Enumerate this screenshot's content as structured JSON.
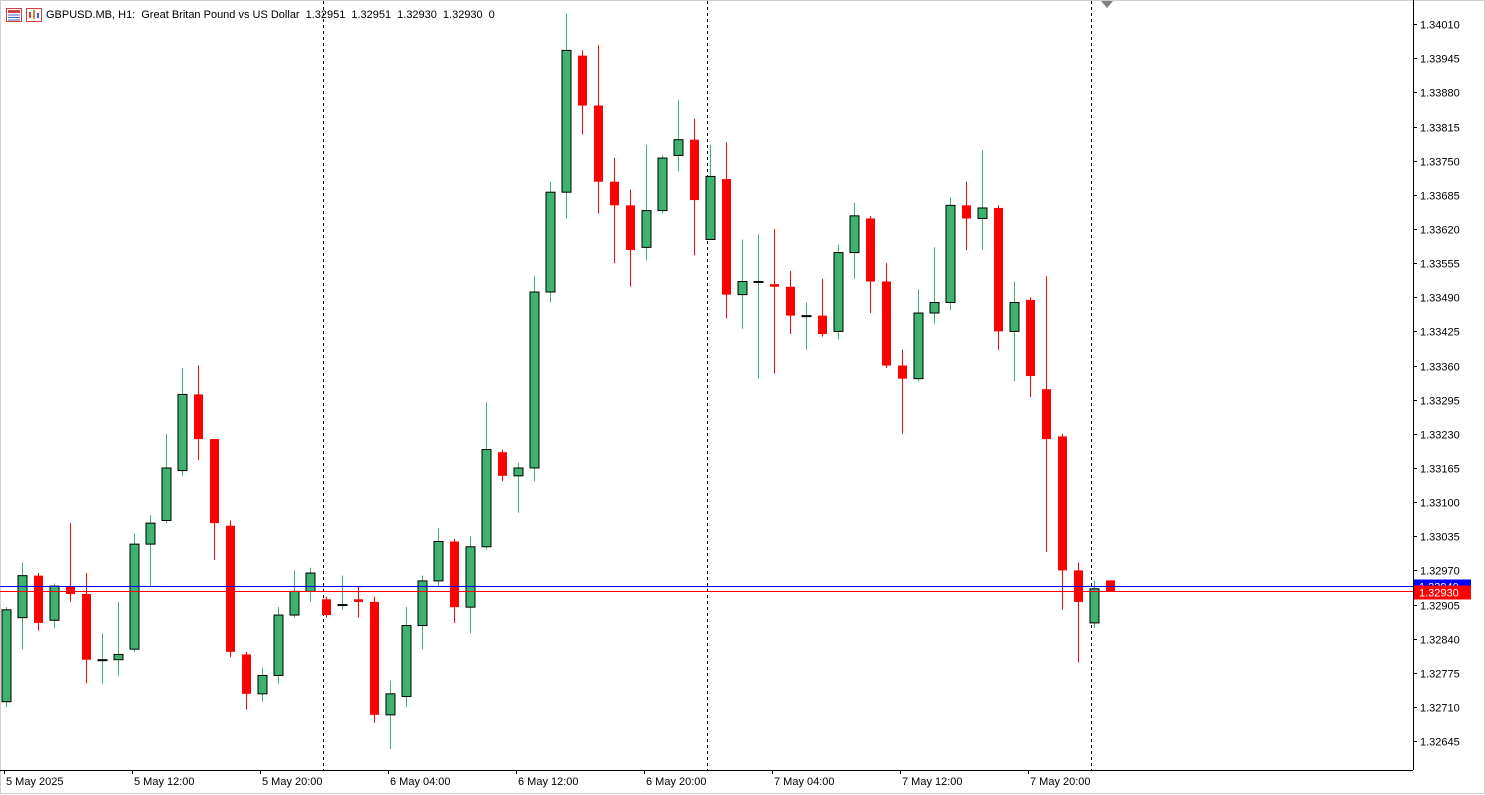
{
  "header": {
    "symbol": "GBPUSD.MB, H1:",
    "description": "Great Britan Pound vs US Dollar",
    "open": "1.32951",
    "high": "1.32951",
    "low": "1.32930",
    "close": "1.32930",
    "volume": "0",
    "icons": [
      "order-book-icon",
      "chart-window-icon"
    ]
  },
  "colors": {
    "bull": "#3cb371",
    "bear": "#ff0000",
    "wick_bull": "#3cb371",
    "wick_bear": "#ff0000",
    "candle_border": "#000000",
    "bid_line": "#ff0000",
    "ask_line": "#0000ff",
    "bid_label_bg": "#ff0000",
    "ask_label_bg": "#0000ff",
    "grid": "#000000",
    "axis_text": "#000000"
  },
  "chart_data": {
    "type": "candlestick",
    "symbol": "GBPUSD.MB",
    "timeframe": "H1",
    "y_axis_ticks": [
      "1.34010",
      "1.33945",
      "1.33880",
      "1.33815",
      "1.33750",
      "1.33685",
      "1.33620",
      "1.33555",
      "1.33490",
      "1.33425",
      "1.33360",
      "1.33295",
      "1.33230",
      "1.33165",
      "1.33100",
      "1.33035",
      "1.32970",
      "1.32905",
      "1.32840",
      "1.32775",
      "1.32710",
      "1.32645"
    ],
    "ylim": [
      1.3259,
      1.34054
    ],
    "x_axis_labels": [
      {
        "label": "5 May 2025",
        "index": 0
      },
      {
        "label": "5 May 12:00",
        "index": 8
      },
      {
        "label": "5 May 20:00",
        "index": 16
      },
      {
        "label": "6 May 04:00",
        "index": 24
      },
      {
        "label": "6 May 12:00",
        "index": 32
      },
      {
        "label": "6 May 20:00",
        "index": 40
      },
      {
        "label": "7 May 04:00",
        "index": 48
      },
      {
        "label": "7 May 12:00",
        "index": 56
      },
      {
        "label": "7 May 20:00",
        "index": 64
      }
    ],
    "day_separators": [
      20,
      44,
      68
    ],
    "current_bid": "1.32930",
    "current_ask": "1.32940",
    "candles": [
      {
        "o": 1.3272,
        "h": 1.329,
        "l": 1.3271,
        "c": 1.32895
      },
      {
        "o": 1.3288,
        "h": 1.32985,
        "l": 1.3282,
        "c": 1.3296
      },
      {
        "o": 1.3296,
        "h": 1.32965,
        "l": 1.32855,
        "c": 1.3287
      },
      {
        "o": 1.32875,
        "h": 1.32945,
        "l": 1.3286,
        "c": 1.3294
      },
      {
        "o": 1.3294,
        "h": 1.3306,
        "l": 1.3291,
        "c": 1.32925
      },
      {
        "o": 1.32925,
        "h": 1.32965,
        "l": 1.32755,
        "c": 1.328
      },
      {
        "o": 1.328,
        "h": 1.3285,
        "l": 1.32755,
        "c": 1.328
      },
      {
        "o": 1.328,
        "h": 1.3291,
        "l": 1.3277,
        "c": 1.3281
      },
      {
        "o": 1.3282,
        "h": 1.3304,
        "l": 1.32815,
        "c": 1.3302
      },
      {
        "o": 1.3302,
        "h": 1.33075,
        "l": 1.3294,
        "c": 1.3306
      },
      {
        "o": 1.33065,
        "h": 1.3323,
        "l": 1.3306,
        "c": 1.33165
      },
      {
        "o": 1.3316,
        "h": 1.33355,
        "l": 1.3315,
        "c": 1.33305
      },
      {
        "o": 1.33305,
        "h": 1.3336,
        "l": 1.3318,
        "c": 1.3322
      },
      {
        "o": 1.3322,
        "h": 1.3322,
        "l": 1.3299,
        "c": 1.3306
      },
      {
        "o": 1.33055,
        "h": 1.33065,
        "l": 1.32805,
        "c": 1.32815
      },
      {
        "o": 1.3281,
        "h": 1.32815,
        "l": 1.32705,
        "c": 1.32735
      },
      {
        "o": 1.32735,
        "h": 1.32785,
        "l": 1.3272,
        "c": 1.3277
      },
      {
        "o": 1.3277,
        "h": 1.329,
        "l": 1.32755,
        "c": 1.32885
      },
      {
        "o": 1.32885,
        "h": 1.3297,
        "l": 1.3288,
        "c": 1.3293
      },
      {
        "o": 1.3293,
        "h": 1.32975,
        "l": 1.3291,
        "c": 1.32965
      },
      {
        "o": 1.32915,
        "h": 1.3292,
        "l": 1.3288,
        "c": 1.32885
      },
      {
        "o": 1.32905,
        "h": 1.3296,
        "l": 1.32895,
        "c": 1.32905
      },
      {
        "o": 1.32915,
        "h": 1.3294,
        "l": 1.3288,
        "c": 1.3291
      },
      {
        "o": 1.3291,
        "h": 1.3292,
        "l": 1.3268,
        "c": 1.32695
      },
      {
        "o": 1.32695,
        "h": 1.3276,
        "l": 1.3263,
        "c": 1.32735
      },
      {
        "o": 1.3273,
        "h": 1.329,
        "l": 1.3271,
        "c": 1.32865
      },
      {
        "o": 1.32865,
        "h": 1.3296,
        "l": 1.3282,
        "c": 1.3295
      },
      {
        "o": 1.3295,
        "h": 1.3305,
        "l": 1.3294,
        "c": 1.33025
      },
      {
        "o": 1.33025,
        "h": 1.3303,
        "l": 1.3287,
        "c": 1.329
      },
      {
        "o": 1.329,
        "h": 1.33035,
        "l": 1.3285,
        "c": 1.33015
      },
      {
        "o": 1.33015,
        "h": 1.3329,
        "l": 1.3301,
        "c": 1.332
      },
      {
        "o": 1.33195,
        "h": 1.332,
        "l": 1.3314,
        "c": 1.3315
      },
      {
        "o": 1.3315,
        "h": 1.33175,
        "l": 1.3308,
        "c": 1.33165
      },
      {
        "o": 1.33165,
        "h": 1.3353,
        "l": 1.3314,
        "c": 1.335
      },
      {
        "o": 1.335,
        "h": 1.3371,
        "l": 1.3348,
        "c": 1.3369
      },
      {
        "o": 1.3369,
        "h": 1.3403,
        "l": 1.3364,
        "c": 1.3396
      },
      {
        "o": 1.3395,
        "h": 1.3396,
        "l": 1.338,
        "c": 1.33855
      },
      {
        "o": 1.33855,
        "h": 1.3397,
        "l": 1.3365,
        "c": 1.3371
      },
      {
        "o": 1.3371,
        "h": 1.33755,
        "l": 1.33555,
        "c": 1.33665
      },
      {
        "o": 1.33665,
        "h": 1.33695,
        "l": 1.3351,
        "c": 1.3358
      },
      {
        "o": 1.33585,
        "h": 1.3378,
        "l": 1.3356,
        "c": 1.33655
      },
      {
        "o": 1.33655,
        "h": 1.3376,
        "l": 1.3365,
        "c": 1.33755
      },
      {
        "o": 1.3376,
        "h": 1.33865,
        "l": 1.3373,
        "c": 1.3379
      },
      {
        "o": 1.3379,
        "h": 1.3383,
        "l": 1.3357,
        "c": 1.33675
      },
      {
        "o": 1.336,
        "h": 1.3378,
        "l": 1.336,
        "c": 1.3372
      },
      {
        "o": 1.33715,
        "h": 1.33785,
        "l": 1.3345,
        "c": 1.33495
      },
      {
        "o": 1.33495,
        "h": 1.336,
        "l": 1.3343,
        "c": 1.3352
      },
      {
        "o": 1.3352,
        "h": 1.3361,
        "l": 1.33335,
        "c": 1.3352
      },
      {
        "o": 1.33515,
        "h": 1.3362,
        "l": 1.33345,
        "c": 1.3351
      },
      {
        "o": 1.3351,
        "h": 1.3354,
        "l": 1.3342,
        "c": 1.33455
      },
      {
        "o": 1.33455,
        "h": 1.3348,
        "l": 1.3339,
        "c": 1.33455
      },
      {
        "o": 1.33455,
        "h": 1.33525,
        "l": 1.33415,
        "c": 1.3342
      },
      {
        "o": 1.33425,
        "h": 1.3359,
        "l": 1.3341,
        "c": 1.33575
      },
      {
        "o": 1.33575,
        "h": 1.3367,
        "l": 1.33525,
        "c": 1.33645
      },
      {
        "o": 1.3364,
        "h": 1.33645,
        "l": 1.3346,
        "c": 1.3352
      },
      {
        "o": 1.3352,
        "h": 1.33555,
        "l": 1.33355,
        "c": 1.3336
      },
      {
        "o": 1.3336,
        "h": 1.3339,
        "l": 1.3323,
        "c": 1.33335
      },
      {
        "o": 1.33335,
        "h": 1.33505,
        "l": 1.3333,
        "c": 1.3346
      },
      {
        "o": 1.3346,
        "h": 1.33585,
        "l": 1.3344,
        "c": 1.3348
      },
      {
        "o": 1.3348,
        "h": 1.3368,
        "l": 1.33465,
        "c": 1.33665
      },
      {
        "o": 1.33665,
        "h": 1.3371,
        "l": 1.3358,
        "c": 1.3364
      },
      {
        "o": 1.3364,
        "h": 1.3377,
        "l": 1.3358,
        "c": 1.3366
      },
      {
        "o": 1.3366,
        "h": 1.33665,
        "l": 1.3339,
        "c": 1.33425
      },
      {
        "o": 1.33425,
        "h": 1.3352,
        "l": 1.3333,
        "c": 1.3348
      },
      {
        "o": 1.33485,
        "h": 1.3349,
        "l": 1.333,
        "c": 1.3334
      },
      {
        "o": 1.33315,
        "h": 1.3353,
        "l": 1.33005,
        "c": 1.3322
      },
      {
        "o": 1.33225,
        "h": 1.3323,
        "l": 1.32895,
        "c": 1.3297
      },
      {
        "o": 1.3297,
        "h": 1.32985,
        "l": 1.32795,
        "c": 1.3291
      },
      {
        "o": 1.3287,
        "h": 1.3295,
        "l": 1.3286,
        "c": 1.32935
      },
      {
        "o": 1.32951,
        "h": 1.32951,
        "l": 1.3293,
        "c": 1.3293
      }
    ]
  }
}
